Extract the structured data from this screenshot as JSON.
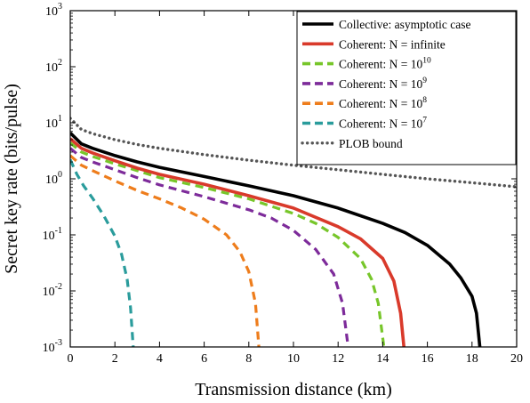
{
  "chart_data": {
    "type": "line",
    "xlabel": "Transmission distance (km)",
    "ylabel": "Secret key rate  (bits/pulse)",
    "xlim": [
      0,
      20
    ],
    "ylim": [
      0.001,
      1000
    ],
    "yscale": "log",
    "xticks": [
      "0",
      "2",
      "4",
      "6",
      "8",
      "10",
      "12",
      "14",
      "16",
      "18",
      "20"
    ],
    "yticks": [
      {
        "base": "10",
        "exp": "-3"
      },
      {
        "base": "10",
        "exp": "-2"
      },
      {
        "base": "10",
        "exp": "-1"
      },
      {
        "base": "10",
        "exp": "0"
      },
      {
        "base": "10",
        "exp": "1"
      },
      {
        "base": "10",
        "exp": "2"
      },
      {
        "base": "10",
        "exp": "3"
      }
    ],
    "legend_position": "top-right",
    "series": [
      {
        "legend": "Collective: asymptotic case",
        "color": "#000000",
        "style": "solid",
        "points": [
          [
            0,
            6.6
          ],
          [
            0.5,
            4.2
          ],
          [
            1,
            3.5
          ],
          [
            2,
            2.6
          ],
          [
            3,
            2.0
          ],
          [
            4,
            1.6
          ],
          [
            6,
            1.1
          ],
          [
            8,
            0.75
          ],
          [
            10,
            0.5
          ],
          [
            12,
            0.3
          ],
          [
            14,
            0.16
          ],
          [
            15,
            0.11
          ],
          [
            16,
            0.065
          ],
          [
            17,
            0.03
          ],
          [
            17.5,
            0.017
          ],
          [
            18,
            0.008
          ],
          [
            18.2,
            0.004
          ],
          [
            18.35,
            0.001
          ]
        ]
      },
      {
        "legend": "Coherent: N = infinite",
        "color": "#d93a2b",
        "style": "solid",
        "points": [
          [
            0,
            5.2
          ],
          [
            0.5,
            3.5
          ],
          [
            1,
            2.9
          ],
          [
            2,
            2.1
          ],
          [
            3,
            1.55
          ],
          [
            4,
            1.2
          ],
          [
            6,
            0.8
          ],
          [
            8,
            0.5
          ],
          [
            10,
            0.3
          ],
          [
            12,
            0.14
          ],
          [
            13,
            0.085
          ],
          [
            14,
            0.038
          ],
          [
            14.5,
            0.015
          ],
          [
            14.8,
            0.004
          ],
          [
            14.95,
            0.001
          ]
        ]
      },
      {
        "legend": "Coherent: N = 10",
        "legend_exp": "10",
        "color": "#77c62a",
        "style": "dashed",
        "points": [
          [
            0,
            4.4
          ],
          [
            0.5,
            3.0
          ],
          [
            1,
            2.5
          ],
          [
            2,
            1.85
          ],
          [
            3,
            1.4
          ],
          [
            4,
            1.05
          ],
          [
            6,
            0.7
          ],
          [
            8,
            0.44
          ],
          [
            10,
            0.24
          ],
          [
            11,
            0.16
          ],
          [
            12,
            0.09
          ],
          [
            13,
            0.038
          ],
          [
            13.5,
            0.016
          ],
          [
            13.8,
            0.006
          ],
          [
            14.05,
            0.001
          ]
        ]
      },
      {
        "legend": "Coherent: N = 10",
        "legend_exp": "9",
        "color": "#7d2b9a",
        "style": "dashed",
        "points": [
          [
            0,
            3.5
          ],
          [
            0.5,
            2.4
          ],
          [
            1,
            2.0
          ],
          [
            2,
            1.45
          ],
          [
            3,
            1.05
          ],
          [
            4,
            0.78
          ],
          [
            6,
            0.48
          ],
          [
            8,
            0.28
          ],
          [
            9,
            0.2
          ],
          [
            10,
            0.12
          ],
          [
            11,
            0.055
          ],
          [
            11.8,
            0.02
          ],
          [
            12.2,
            0.006
          ],
          [
            12.45,
            0.001
          ]
        ]
      },
      {
        "legend": "Coherent: N = 10",
        "legend_exp": "8",
        "color": "#ee7d1c",
        "style": "dashed",
        "points": [
          [
            0,
            2.6
          ],
          [
            0.5,
            1.75
          ],
          [
            1,
            1.4
          ],
          [
            2,
            0.92
          ],
          [
            3,
            0.62
          ],
          [
            4,
            0.44
          ],
          [
            5,
            0.3
          ],
          [
            6,
            0.19
          ],
          [
            7,
            0.1
          ],
          [
            7.6,
            0.05
          ],
          [
            8,
            0.022
          ],
          [
            8.3,
            0.006
          ],
          [
            8.45,
            0.001
          ]
        ]
      },
      {
        "legend": "Coherent: N = 10",
        "legend_exp": "7",
        "color": "#2a9c9c",
        "style": "dashed",
        "points": [
          [
            0,
            2.2
          ],
          [
            0.3,
            1.2
          ],
          [
            0.6,
            0.75
          ],
          [
            1,
            0.45
          ],
          [
            1.5,
            0.22
          ],
          [
            2,
            0.095
          ],
          [
            2.3,
            0.045
          ],
          [
            2.55,
            0.016
          ],
          [
            2.7,
            0.005
          ],
          [
            2.82,
            0.001
          ]
        ]
      },
      {
        "legend": "PLOB bound",
        "color": "#555555",
        "style": "dotted",
        "points": [
          [
            0,
            12.0
          ],
          [
            0.5,
            7.6
          ],
          [
            1,
            6.4
          ],
          [
            2,
            5.0
          ],
          [
            3,
            4.1
          ],
          [
            4,
            3.5
          ],
          [
            6,
            2.7
          ],
          [
            8,
            2.15
          ],
          [
            10,
            1.75
          ],
          [
            12,
            1.45
          ],
          [
            14,
            1.2
          ],
          [
            16,
            1.0
          ],
          [
            18,
            0.85
          ],
          [
            20,
            0.72
          ]
        ]
      }
    ]
  }
}
